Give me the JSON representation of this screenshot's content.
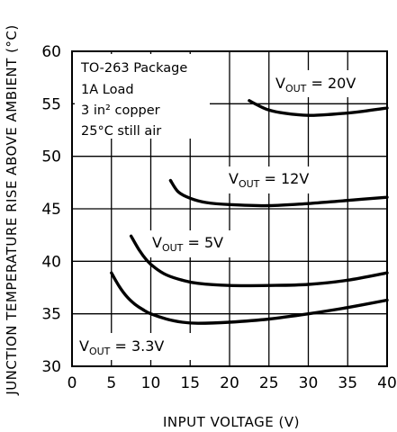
{
  "chart_data": {
    "type": "line",
    "xlabel": "INPUT VOLTAGE (V)",
    "ylabel": "JUNCTION TEMPERATURE RISE ABOVE AMBIENT (°C)",
    "xlim": [
      0,
      40
    ],
    "ylim": [
      30,
      60
    ],
    "x_ticks": [
      0,
      5,
      10,
      15,
      20,
      25,
      30,
      35,
      40
    ],
    "y_ticks": [
      30,
      35,
      40,
      45,
      50,
      55,
      60
    ],
    "grid": true,
    "conditions": [
      "TO-263 Package",
      "1A Load",
      "3 in² copper",
      "25°C still air"
    ],
    "series": [
      {
        "name": "VOUT = 3.3V",
        "x": [
          5,
          6,
          7,
          8,
          9,
          10,
          12,
          14,
          16,
          20,
          25,
          30,
          35,
          40
        ],
        "y": [
          38.9,
          37.6,
          36.6,
          35.9,
          35.4,
          35.0,
          34.5,
          34.2,
          34.1,
          34.2,
          34.5,
          35.0,
          35.6,
          36.3
        ]
      },
      {
        "name": "VOUT = 5V",
        "x": [
          7.5,
          8.5,
          9.5,
          10.5,
          12,
          14,
          16,
          20,
          25,
          30,
          35,
          40
        ],
        "y": [
          42.4,
          41.1,
          40.1,
          39.4,
          38.7,
          38.2,
          37.9,
          37.7,
          37.7,
          37.8,
          38.2,
          38.9
        ]
      },
      {
        "name": "VOUT = 12V",
        "x": [
          12.5,
          13.5,
          15,
          17,
          20,
          25,
          30,
          35,
          40
        ],
        "y": [
          47.7,
          46.6,
          46.0,
          45.6,
          45.4,
          45.3,
          45.5,
          45.8,
          46.1
        ]
      },
      {
        "name": "VOUT = 20V",
        "x": [
          22.5,
          23.5,
          25,
          27,
          30,
          33,
          36,
          40
        ],
        "y": [
          55.3,
          54.9,
          54.4,
          54.1,
          53.9,
          54.0,
          54.2,
          54.6
        ]
      }
    ]
  },
  "labels": {
    "vout_20": {
      "pre": "V",
      "sub": "OUT",
      "post": " = 20V"
    },
    "vout_12": {
      "pre": "V",
      "sub": "OUT",
      "post": " = 12V"
    },
    "vout_5": {
      "pre": "V",
      "sub": "OUT",
      "post": " = 5V"
    },
    "vout_33": {
      "pre": "V",
      "sub": "OUT",
      "post": " = 3.3V"
    }
  }
}
